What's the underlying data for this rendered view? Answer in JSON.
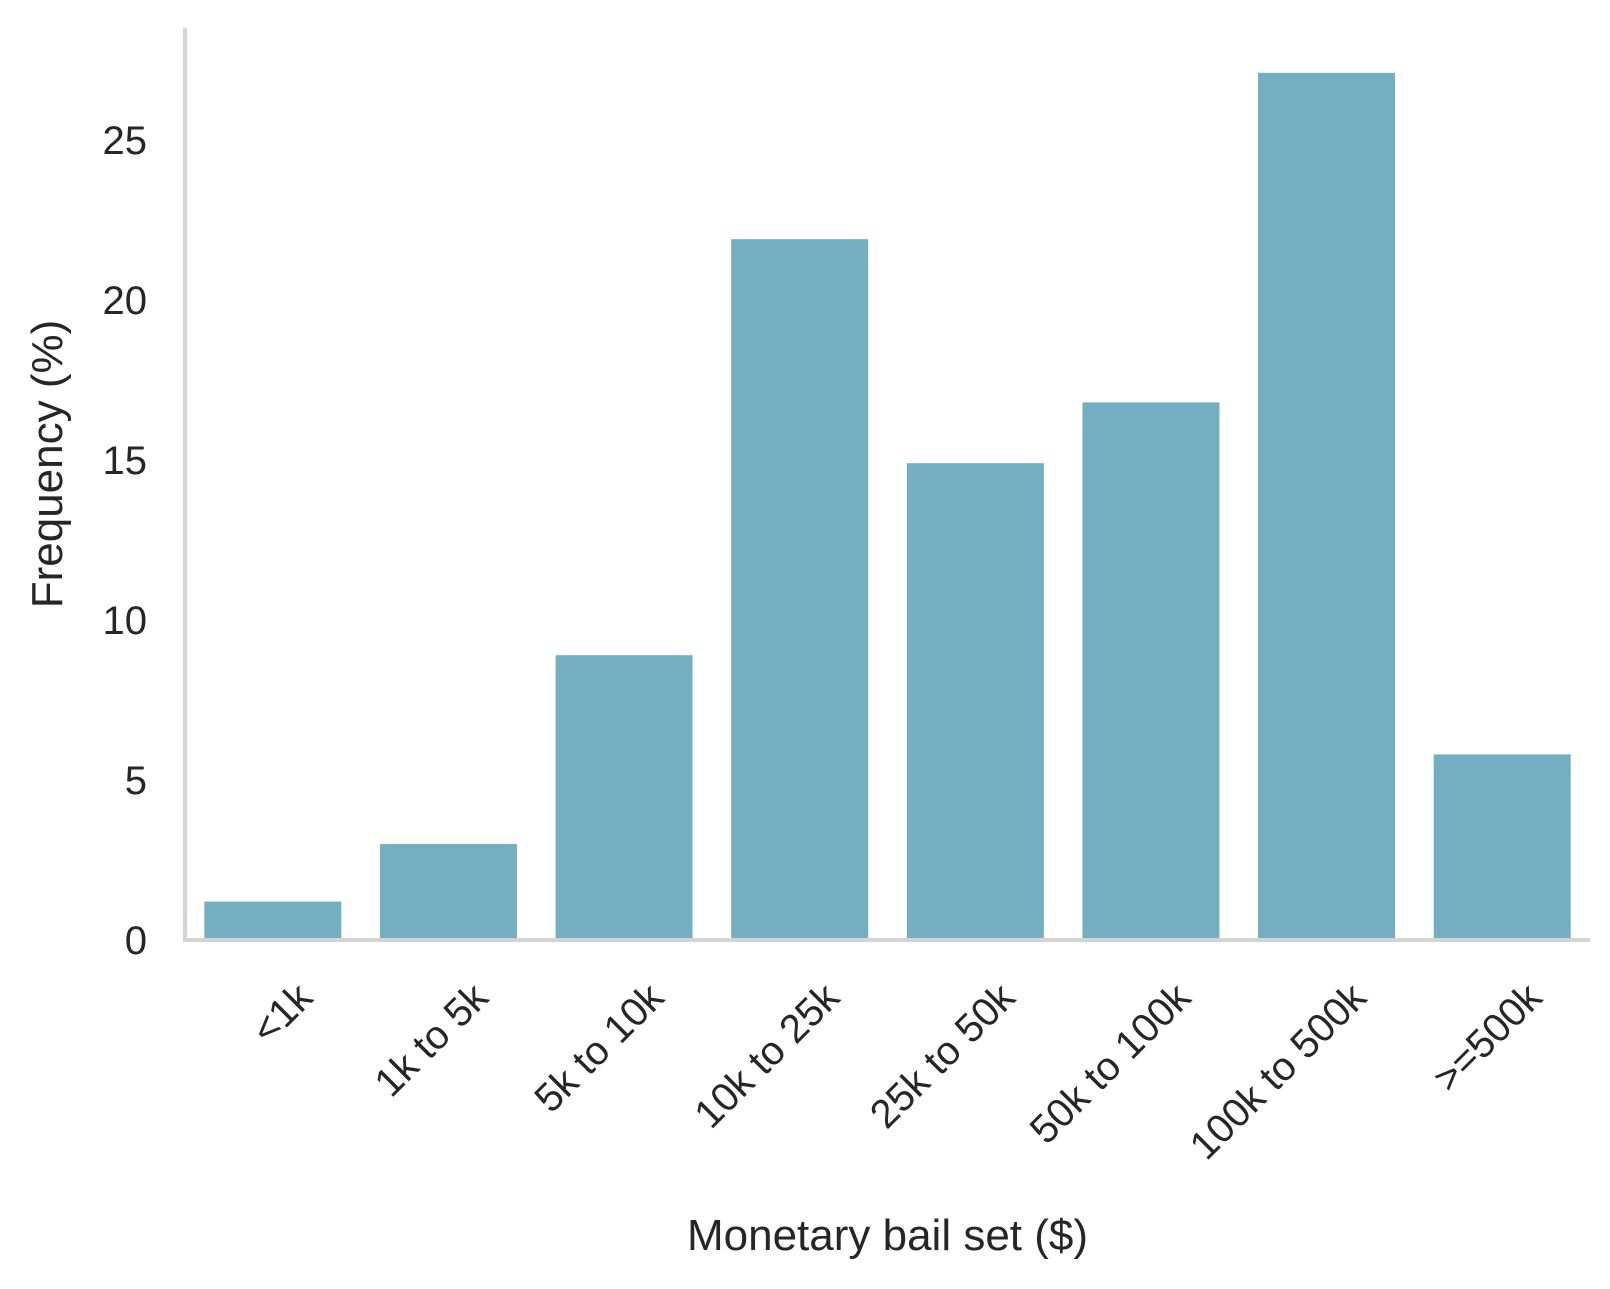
{
  "chart_data": {
    "type": "bar",
    "title": "",
    "xlabel": "Monetary bail set ($)",
    "ylabel": "Frequency (%)",
    "categories": [
      "<1k",
      "1k to 5k",
      "5k to 10k",
      "10k to 25k",
      "25k to 50k",
      "50k to 100k",
      "100k to 500k",
      ">=500k"
    ],
    "values": [
      1.2,
      3.0,
      8.9,
      21.9,
      14.9,
      16.8,
      27.1,
      5.8
    ],
    "ylim": [
      0,
      28.5
    ],
    "yticks": [
      0,
      5,
      10,
      15,
      20,
      25
    ],
    "grid": false,
    "bar_color": "#73aec1",
    "axis_color": "#d4d4d4",
    "text_color": "#262626"
  }
}
